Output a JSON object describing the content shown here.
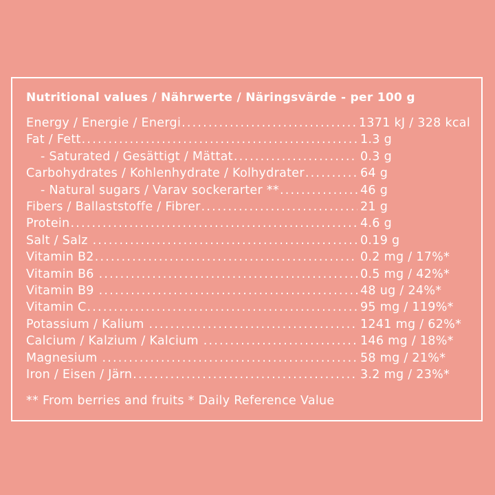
{
  "colors": {
    "background": "#F09C90",
    "text": "#FFFFFF",
    "frame_border": "#FFFFFF"
  },
  "label": {
    "title": "Nutritional values / Nährwerte / Näringsvärde - per 100 g",
    "rows": [
      {
        "label": "Energy / Energie / Energi",
        "value": "1371 kJ / 328 kcal",
        "indent": false
      },
      {
        "label": "Fat / Fett",
        "value": "1.3 g",
        "indent": false
      },
      {
        "label": "- Saturated / Gesättigt / Mättat",
        "value": "0.3 g",
        "indent": true
      },
      {
        "label": "Carbohydrates / Kohlenhydrate / Kolhydrater",
        "value": "64 g",
        "indent": false
      },
      {
        "label": "- Natural sugars / Varav sockerarter **",
        "value": "46 g",
        "indent": true
      },
      {
        "label": "Fibers / Ballaststoffe / Fibrer",
        "value": "21 g",
        "indent": false
      },
      {
        "label": "Protein",
        "value": "4.6 g",
        "indent": false
      },
      {
        "label": "Salt / Salz ",
        "value": "0.19 g",
        "indent": false
      },
      {
        "label": "Vitamin B2",
        "value": "0.2 mg / 17%*",
        "indent": false
      },
      {
        "label": "Vitamin B6 ",
        "value": "0.5 mg / 42%*",
        "indent": false
      },
      {
        "label": "Vitamin B9 ",
        "value": "48 ug / 24%*",
        "indent": false
      },
      {
        "label": "Vitamin C",
        "value": "95 mg / 119%*",
        "indent": false
      },
      {
        "label": "Potassium / Kalium ",
        "value": "1241 mg / 62%*",
        "indent": false
      },
      {
        "label": "Calcium / Kalzium / Kalcium ",
        "value": "146 mg / 18%*",
        "indent": false
      },
      {
        "label": "Magnesium ",
        "value": "58 mg / 21%*",
        "indent": false
      },
      {
        "label": "Iron / Eisen / Järn",
        "value": "3.2 mg / 23%*",
        "indent": false
      }
    ],
    "footnote": "** From berries and fruits * Daily Reference Value"
  }
}
